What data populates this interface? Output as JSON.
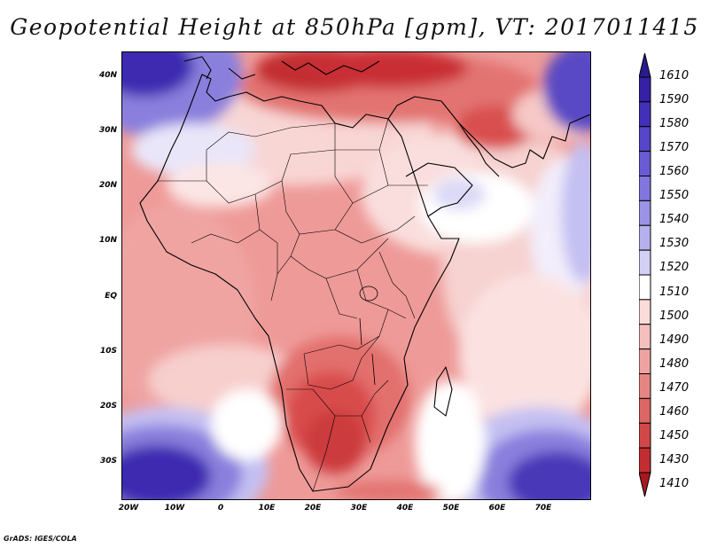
{
  "map": {
    "title": "Geopotential Height at 850hPa [gpm], VT: 2017011415",
    "credit": "GrADS: IGES/COLA",
    "lat_labels": [
      "40N",
      "30N",
      "20N",
      "10N",
      "EQ",
      "10S",
      "20S",
      "30S"
    ],
    "lon_labels": [
      "20W",
      "10W",
      "0",
      "10E",
      "20E",
      "30E",
      "40E",
      "50E",
      "60E",
      "70E"
    ],
    "colorbar": {
      "levels": [
        "1610",
        "1590",
        "1580",
        "1570",
        "1560",
        "1550",
        "1540",
        "1530",
        "1520",
        "1510",
        "1500",
        "1490",
        "1480",
        "1470",
        "1460",
        "1450",
        "1430",
        "1410"
      ],
      "colors": [
        "#2a1a8c",
        "#3520a6",
        "#4330b9",
        "#5545c8",
        "#6a5bd4",
        "#8176dd",
        "#9a93e6",
        "#b6b0ee",
        "#d3d0f6",
        "#ffffff",
        "#fbdcdb",
        "#f4c0be",
        "#eea3a1",
        "#e58683",
        "#dc6664",
        "#d24848",
        "#c22d31",
        "#a6181f"
      ]
    },
    "palette": {
      "deep_blue": "#3d2bb0",
      "mid_blue": "#7b70d8",
      "light_blue": "#c4c0f2",
      "white": "#ffffff",
      "light_red": "#f7cfcd",
      "mid_red": "#ee9a98",
      "strong_red": "#dd5e5c",
      "deep_red": "#b51e26"
    }
  }
}
